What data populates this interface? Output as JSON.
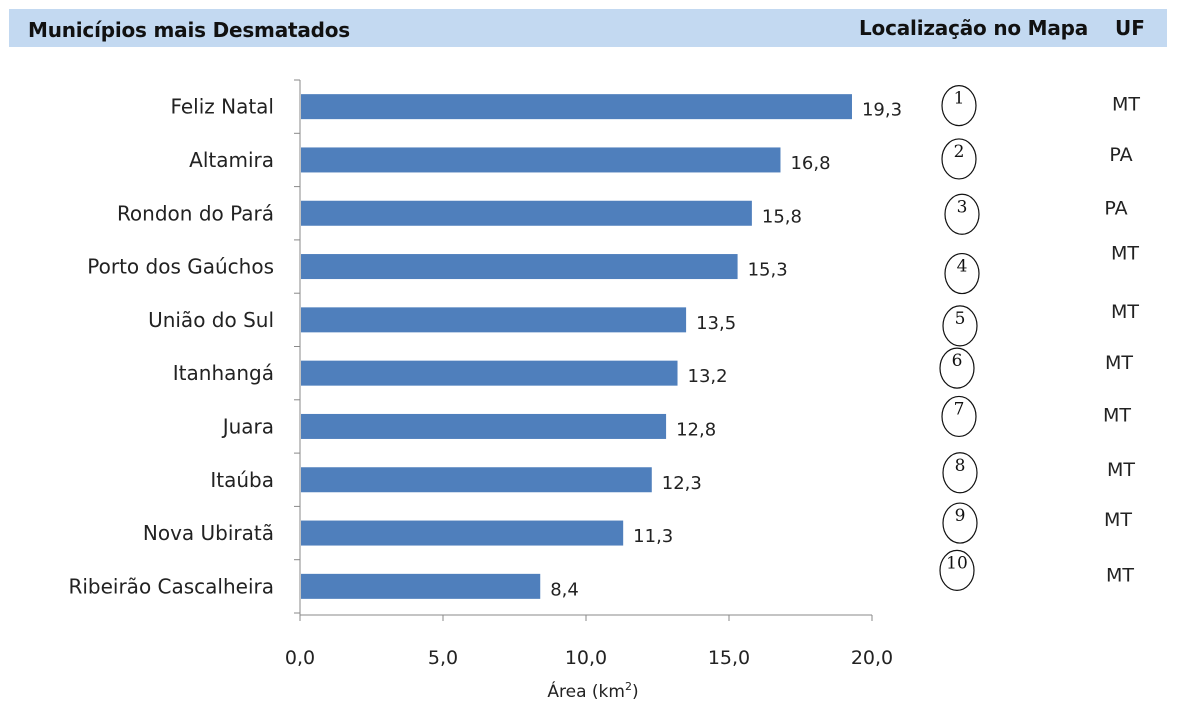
{
  "header": {
    "title": "Municípios mais Desmatados",
    "location_label": "Localização no Mapa",
    "uf_label": "UF"
  },
  "chart_data": {
    "type": "bar",
    "orientation": "horizontal",
    "categories": [
      "Feliz Natal",
      "Altamira",
      "Rondon do Pará",
      "Porto dos Gaúchos",
      "União do Sul",
      "Itanhangá",
      "Juara",
      "Itaúba",
      "Nova Ubiratã",
      "Ribeirão Cascalheira"
    ],
    "values": [
      19.3,
      16.8,
      15.8,
      15.3,
      13.5,
      13.2,
      12.8,
      12.3,
      11.3,
      8.4
    ],
    "value_labels": [
      "19,3",
      "16,8",
      "15,8",
      "15,3",
      "13,5",
      "13,2",
      "12,8",
      "12,3",
      "11,3",
      "8,4"
    ],
    "map_numbers": [
      "1",
      "2",
      "3",
      "4",
      "5",
      "6",
      "7",
      "8",
      "9",
      "10"
    ],
    "uf": [
      "MT",
      "PA",
      "PA",
      "MT",
      "MT",
      "MT",
      "MT",
      "MT",
      "MT",
      "MT"
    ],
    "xlabel": "Área (km",
    "xlabel_sup": "2",
    "xlabel_close": ")",
    "xlim": [
      0,
      20
    ],
    "xticks": [
      0,
      5,
      10,
      15,
      20
    ],
    "xtick_labels": [
      "0,0",
      "5,0",
      "10,0",
      "15,0",
      "20,0"
    ],
    "bar_color": "#4f7fbc",
    "grid": false
  }
}
